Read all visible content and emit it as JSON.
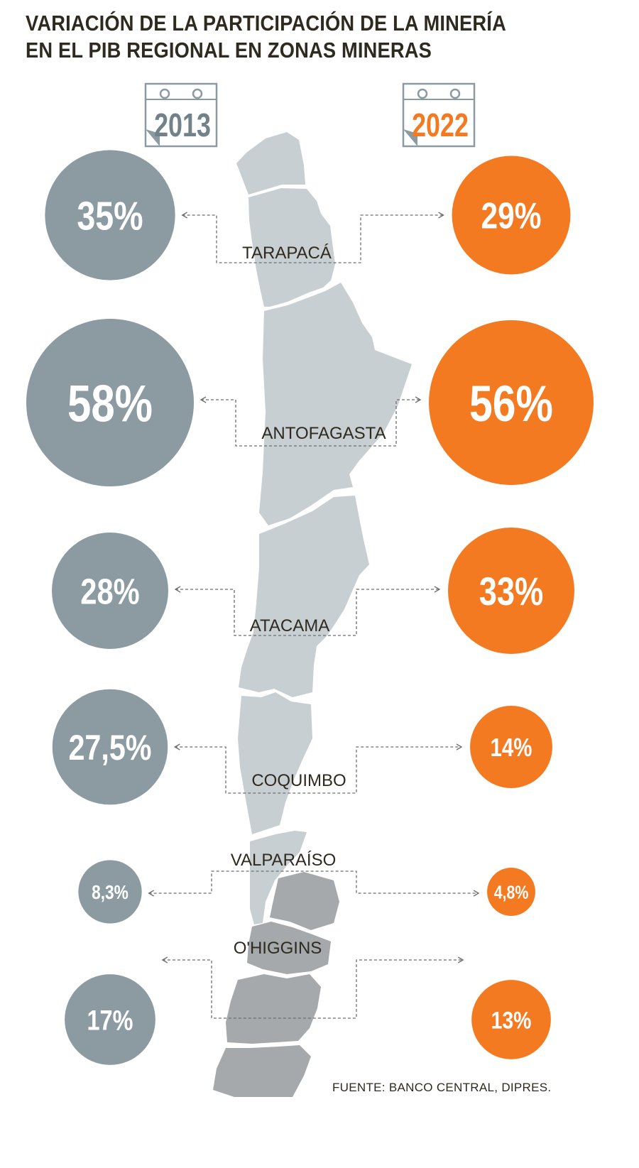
{
  "title_line1": "VARIACIÓN DE LA PARTICIPACIÓN DE LA MINERÍA",
  "title_line2": "EN EL PIB REGIONAL EN ZONAS MINERAS",
  "source": "FUENTE: BANCO CENTRAL, DIPRES.",
  "colors": {
    "y2013": "#8b9ba1",
    "y2022": "#f37a21",
    "map_light": "#c8cfd2",
    "map_dark": "#a5a9ab",
    "text": "#2f2a1f"
  },
  "chart_data": {
    "type": "bubble-comparison",
    "title": "VARIACIÓN DE LA PARTICIPACIÓN DE LA MINERÍA EN EL PIB REGIONAL EN ZONAS MINERAS",
    "unit": "%",
    "series": [
      {
        "name": "2013",
        "color": "#8b9ba1",
        "values": [
          35,
          58,
          28,
          27.5,
          8.3,
          17
        ],
        "labels": [
          "35%",
          "58%",
          "28%",
          "27,5%",
          "8,3%",
          "17%"
        ]
      },
      {
        "name": "2022",
        "color": "#f37a21",
        "values": [
          29,
          56,
          33,
          14,
          4.8,
          13
        ],
        "labels": [
          "29%",
          "56%",
          "33%",
          "14%",
          "4,8%",
          "13%"
        ]
      }
    ],
    "categories": [
      "TARAPACÁ",
      "ANTOFAGASTA",
      "ATACAMA",
      "COQUIMBO",
      "VALPARAÍSO",
      "O'HIGGINS"
    ]
  }
}
